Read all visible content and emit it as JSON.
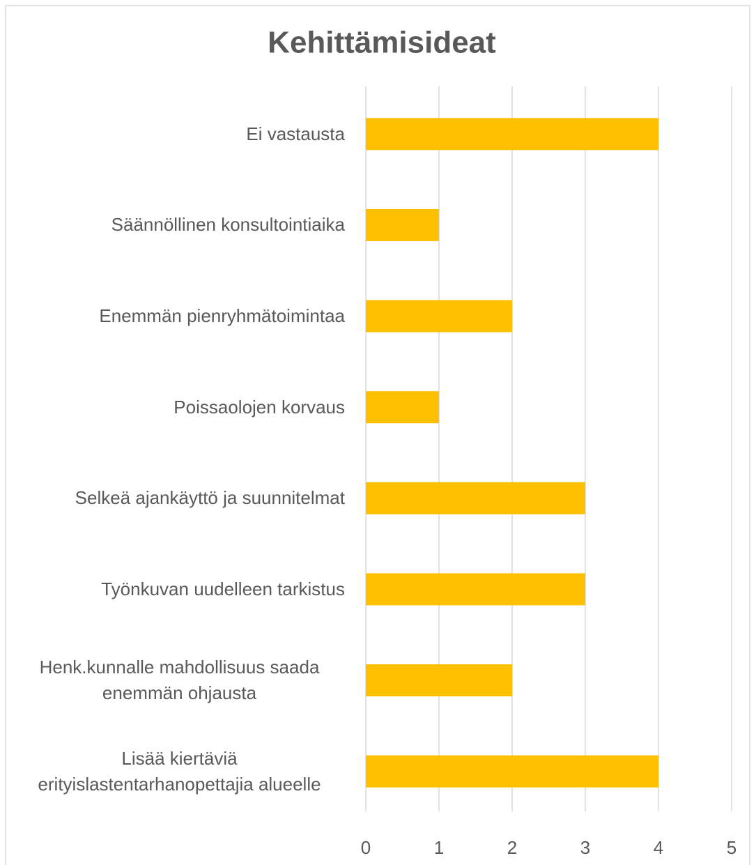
{
  "chart_data": {
    "type": "bar",
    "orientation": "horizontal",
    "title": "Kehittämisideat",
    "categories": [
      "Ei vastausta",
      "Säännöllinen konsultointiaika",
      "Enemmän pienryhmätoimintaa",
      "Poissaolojen korvaus",
      "Selkeä ajankäyttö ja suunnitelmat",
      "Työnkuvan uudelleen tarkistus",
      "Henk.kunnalle mahdollisuus saada enemmän ohjausta",
      "Lisää kiertäviä erityislastentarhanopettajia alueelle"
    ],
    "values": [
      4,
      1,
      2,
      1,
      3,
      3,
      2,
      4
    ],
    "color": "#ffc000",
    "xlim": [
      0,
      5
    ],
    "xticks": [
      0,
      1,
      2,
      3,
      4,
      5
    ],
    "grid": true
  }
}
